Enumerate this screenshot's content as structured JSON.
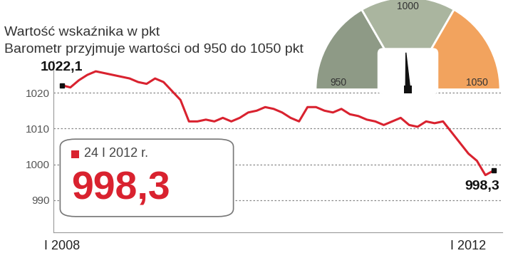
{
  "chart_data": {
    "type": "line",
    "title": "Wartość wskaźnika w pkt",
    "subtitle": "Barometr przyjmuje wartości od 950 do 1050 pkt",
    "categories": [
      "I 2008",
      null,
      null,
      null,
      null,
      null,
      null,
      null,
      null,
      null,
      null,
      null,
      null,
      null,
      null,
      null,
      null,
      null,
      null,
      null,
      null,
      null,
      null,
      null,
      null,
      null,
      null,
      null,
      null,
      null,
      null,
      null,
      null,
      null,
      null,
      null,
      null,
      null,
      null,
      null,
      null,
      null,
      null,
      null,
      null,
      null,
      null,
      null,
      "I 2012",
      null,
      null,
      null
    ],
    "values": [
      1022.1,
      1021.5,
      1023.5,
      1025,
      1026,
      1025.5,
      1025,
      1024.5,
      1024,
      1023,
      1022.5,
      1024,
      1023,
      1020.5,
      1018,
      1012,
      1012,
      1012.5,
      1012,
      1013,
      1012,
      1013,
      1014.5,
      1015,
      1016,
      1015.5,
      1014.5,
      1013,
      1012,
      1016,
      1016,
      1015,
      1014.5,
      1015.5,
      1014,
      1013.5,
      1012.5,
      1012,
      1011,
      1012,
      1013,
      1011,
      1010.5,
      1012,
      1011.5,
      1012,
      1009,
      1006,
      1003,
      1001,
      997,
      998.3
    ],
    "value_labels": [
      "1022,1",
      null,
      null,
      null,
      null,
      null,
      null,
      null,
      null,
      null,
      null,
      null,
      null,
      null,
      null,
      null,
      null,
      null,
      null,
      null,
      null,
      null,
      null,
      null,
      null,
      null,
      null,
      null,
      null,
      null,
      null,
      null,
      null,
      null,
      null,
      null,
      null,
      null,
      null,
      null,
      null,
      null,
      null,
      null,
      null,
      null,
      null,
      null,
      null,
      null,
      null,
      "998,3"
    ],
    "color": "#d9222f",
    "ylim": [
      981,
      1029
    ],
    "yticks": [
      990,
      1000,
      1010,
      1020
    ],
    "grid": true,
    "highlight": {
      "date": "24 I 2012 r.",
      "value": 998.3,
      "label": "998,3"
    },
    "gauge": {
      "range": [
        950,
        1050
      ],
      "ticks": [
        950,
        1000,
        1050
      ],
      "value": 998.3
    }
  }
}
